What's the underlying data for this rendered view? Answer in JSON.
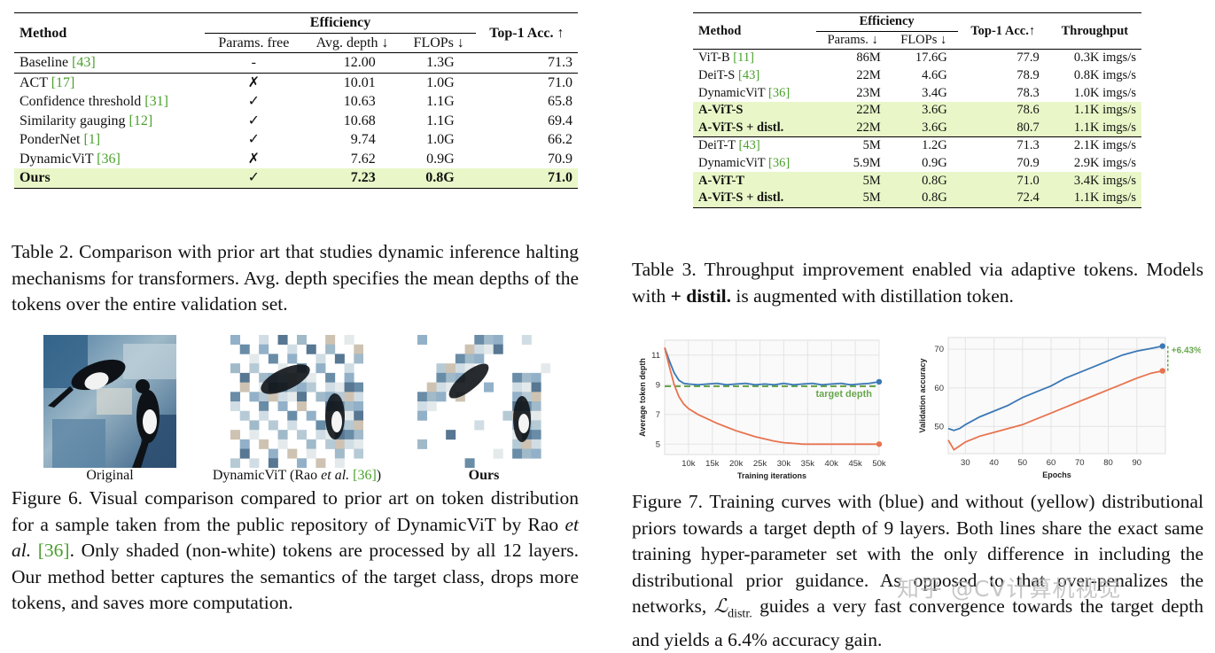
{
  "table2": {
    "headers": {
      "method": "Method",
      "efficiency": "Efficiency",
      "params_free": "Params. free",
      "avg_depth": "Avg. depth ↓",
      "flops": "FLOPs ↓",
      "top1": "Top-1 Acc. ↑"
    },
    "baseline": {
      "name": "Baseline",
      "cite": "[43]",
      "params_free": "-",
      "depth": "12.00",
      "flops": "1.3G",
      "acc": "71.3"
    },
    "rows": [
      {
        "name": "ACT",
        "cite": "[17]",
        "params_free": "✗",
        "depth": "10.01",
        "flops": "1.0G",
        "acc": "71.0"
      },
      {
        "name": "Confidence threshold",
        "cite": "[31]",
        "params_free": "✓",
        "depth": "10.63",
        "flops": "1.1G",
        "acc": "65.8"
      },
      {
        "name": "Similarity gauging",
        "cite": "[12]",
        "params_free": "✓",
        "depth": "10.68",
        "flops": "1.1G",
        "acc": "69.4"
      },
      {
        "name": "PonderNet",
        "cite": "[1]",
        "params_free": "✓",
        "depth": "9.74",
        "flops": "1.0G",
        "acc": "66.2"
      },
      {
        "name": "DynamicViT",
        "cite": "[36]",
        "params_free": "✗",
        "depth": "7.62",
        "flops": "0.9G",
        "acc": "70.9"
      }
    ],
    "ours": {
      "name": "Ours",
      "params_free": "✓",
      "depth": "7.23",
      "flops": "0.8G",
      "acc": "71.0"
    }
  },
  "table3": {
    "headers": {
      "method": "Method",
      "efficiency": "Efficiency",
      "params": "Params. ↓",
      "flops": "FLOPs ↓",
      "top1": "Top-1 Acc.↑",
      "throughput": "Throughput"
    },
    "group1": [
      {
        "name": "ViT-B",
        "cite": "[11]",
        "params": "86M",
        "flops": "17.6G",
        "acc": "77.9",
        "tp": "0.3K imgs/s",
        "hl": false
      },
      {
        "name": "DeiT-S",
        "cite": "[43]",
        "params": "22M",
        "flops": "4.6G",
        "acc": "78.9",
        "tp": "0.8K imgs/s",
        "hl": false
      },
      {
        "name": "DynamicViT",
        "cite": "[36]",
        "params": "23M",
        "flops": "3.4G",
        "acc": "78.3",
        "tp": "1.0K imgs/s",
        "hl": false
      },
      {
        "name": "A-ViT-S",
        "cite": "",
        "params": "22M",
        "flops": "3.6G",
        "acc": "78.6",
        "tp": "1.1K imgs/s",
        "hl": true
      },
      {
        "name": "A-ViT-S + distl.",
        "cite": "",
        "params": "22M",
        "flops": "3.6G",
        "acc": "80.7",
        "tp": "1.1K imgs/s",
        "hl": true
      }
    ],
    "group2": [
      {
        "name": "DeiT-T",
        "cite": "[43]",
        "params": "5M",
        "flops": "1.2G",
        "acc": "71.3",
        "tp": "2.1K imgs/s",
        "hl": false
      },
      {
        "name": "DynamicViT",
        "cite": "[36]",
        "params": "5.9M",
        "flops": "0.9G",
        "acc": "70.9",
        "tp": "2.9K imgs/s",
        "hl": false
      },
      {
        "name": "A-ViT-T",
        "cite": "",
        "params": "5M",
        "flops": "0.8G",
        "acc": "71.0",
        "tp": "3.4K imgs/s",
        "hl": true
      },
      {
        "name": "A-ViT-S + distl.",
        "cite": "",
        "params": "5M",
        "flops": "0.8G",
        "acc": "72.4",
        "tp": "1.1K imgs/s",
        "hl": true
      }
    ]
  },
  "captions": {
    "table2": {
      "label": "Table 2.",
      "text": "Comparison with prior art that studies dynamic inference halting mechanisms for transformers. Avg. depth specifies the mean depths of the tokens over the entire validation set."
    },
    "table3": {
      "label": "Table 3.",
      "pre": "Throughput improvement enabled via adaptive tokens. Models with",
      "bold": "+ distil.",
      "post": "is augmented with distillation token."
    },
    "fig6": {
      "label": "Figure 6.",
      "p1": "Visual comparison compared to prior art on token distribution for a sample taken from the public repository of DynamicViT by Rao",
      "etal": "et al.",
      "cite": "[36]",
      "p2": ". Only shaded (non-white) tokens are processed by all 12 layers. Our method better captures the semantics of the target class, drops more tokens, and saves more computation."
    },
    "fig7": {
      "label": "Figure 7.",
      "p1": "Training curves with (blue) and without (yellow) distributional priors towards a target depth of 9 layers. Both lines share the exact same training hyper-parameter set with the only difference in including the distributional prior guidance. As opposed to",
      "p2": "that over-penalizes the networks,",
      "loss": "ℒ",
      "loss_sub": "distr.",
      "p3": "guides a very fast convergence towards the target depth and yields a 6.4% accuracy gain."
    }
  },
  "fig6_labels": {
    "original": "Original",
    "dynamicvit_pre": "DynamicViT (Rao",
    "dynamicvit_etal": "et al.",
    "dynamicvit_cite": "[36]",
    "dynamicvit_post": ")",
    "ours": "Ours"
  },
  "chart_data": [
    {
      "type": "line",
      "xlabel": "Training iterations",
      "ylabel": "Average token depth",
      "xticks": [
        "10k",
        "15k",
        "20k",
        "25k",
        "30k",
        "35k",
        "40k",
        "45k",
        "50k"
      ],
      "yticks": [
        5,
        7,
        9,
        11
      ],
      "xlim": [
        5000,
        50000
      ],
      "ylim": [
        4.3,
        12
      ],
      "annotation": "target depth",
      "target": 8.9,
      "series": [
        {
          "color": "#3b78b5",
          "x": [
            5000,
            6000,
            7000,
            8000,
            9000,
            10000,
            12000,
            14000,
            16000,
            18000,
            20000,
            22000,
            24000,
            26000,
            28000,
            30000,
            32000,
            34000,
            36000,
            38000,
            40000,
            42000,
            44000,
            46000,
            48000,
            50000
          ],
          "y": [
            11.5,
            10.6,
            9.8,
            9.3,
            9.1,
            9.05,
            9.0,
            9.05,
            9.1,
            9.0,
            9.05,
            9.1,
            9.0,
            9.05,
            9.0,
            9.1,
            9.0,
            9.05,
            9.1,
            9.0,
            9.05,
            9.1,
            9.0,
            9.05,
            9.1,
            9.2
          ]
        },
        {
          "color": "#e8734f",
          "x": [
            5000,
            6000,
            7000,
            8000,
            9000,
            10000,
            12000,
            14000,
            16000,
            18000,
            20000,
            22000,
            24000,
            26000,
            28000,
            30000,
            32000,
            34000,
            36000,
            38000,
            40000,
            42000,
            44000,
            46000,
            48000,
            50000
          ],
          "y": [
            11.5,
            10.2,
            9.0,
            8.2,
            7.7,
            7.4,
            7.0,
            6.7,
            6.4,
            6.15,
            5.9,
            5.7,
            5.5,
            5.35,
            5.2,
            5.1,
            5.05,
            5.0,
            5.0,
            5.0,
            5.0,
            5.0,
            5.0,
            5.0,
            5.0,
            5.0
          ]
        }
      ]
    },
    {
      "type": "line",
      "xlabel": "Epochs",
      "ylabel": "Validation accuracy",
      "xticks": [
        30,
        40,
        50,
        60,
        70,
        80,
        90
      ],
      "yticks": [
        50,
        60,
        70
      ],
      "xlim": [
        24,
        100
      ],
      "ylim": [
        43,
        73
      ],
      "annotation": "+6.43%",
      "series": [
        {
          "color": "#3b78b5",
          "x": [
            24,
            26,
            28,
            30,
            35,
            40,
            45,
            50,
            55,
            60,
            65,
            70,
            75,
            80,
            85,
            90,
            95,
            99
          ],
          "y": [
            49.5,
            49.0,
            49.5,
            50.5,
            52.5,
            54.0,
            55.5,
            57.5,
            59.0,
            60.5,
            62.5,
            64.0,
            65.5,
            67.0,
            68.5,
            69.5,
            70.2,
            70.8
          ]
        },
        {
          "color": "#e8734f",
          "x": [
            24,
            26,
            28,
            30,
            35,
            40,
            45,
            50,
            55,
            60,
            65,
            70,
            75,
            80,
            85,
            90,
            95,
            99
          ],
          "y": [
            46.5,
            44.0,
            45.0,
            46.0,
            47.5,
            48.5,
            49.5,
            50.5,
            52.0,
            53.5,
            55.0,
            56.5,
            58.0,
            59.5,
            61.0,
            62.5,
            63.8,
            64.4
          ]
        }
      ]
    }
  ],
  "watermark": "知乎 @CV计算机视觉"
}
